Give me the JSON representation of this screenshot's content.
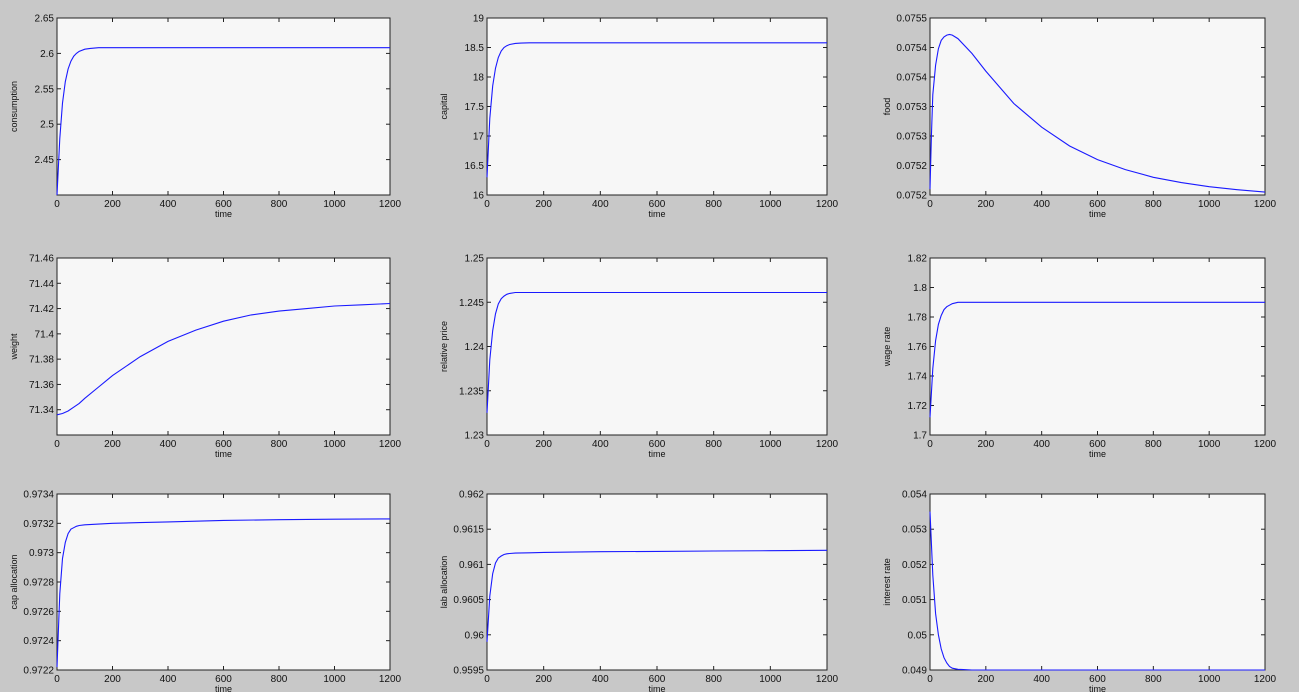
{
  "figure": {
    "background": "#c8c8c8",
    "axes_background": "#f7f7f7",
    "line_color": "#1a1aff"
  },
  "chart_data": [
    {
      "type": "line",
      "xlabel": "time",
      "ylabel": "consumption",
      "xlim": [
        0,
        1200
      ],
      "ylim": [
        2.4,
        2.65
      ],
      "xticks": [
        0,
        200,
        400,
        600,
        800,
        1000,
        1200
      ],
      "xtick_labels": [
        "0",
        "200",
        "400",
        "600",
        "800",
        "1000",
        "1200"
      ],
      "yticks": [
        2.45,
        2.5,
        2.55,
        2.6,
        2.65
      ],
      "ytick_labels": [
        "2.45",
        "2.5",
        "2.55",
        "2.6",
        "2.65"
      ],
      "series": [
        {
          "x": [
            0,
            10,
            20,
            30,
            40,
            50,
            60,
            70,
            80,
            100,
            120,
            150,
            200,
            300,
            600,
            900,
            1200
          ],
          "y": [
            2.4,
            2.48,
            2.53,
            2.56,
            2.578,
            2.589,
            2.596,
            2.6,
            2.603,
            2.606,
            2.607,
            2.608,
            2.608,
            2.608,
            2.608,
            2.608,
            2.608
          ]
        }
      ]
    },
    {
      "type": "line",
      "xlabel": "time",
      "ylabel": "capital",
      "xlim": [
        0,
        1200
      ],
      "ylim": [
        16,
        19
      ],
      "xticks": [
        0,
        200,
        400,
        600,
        800,
        1000,
        1200
      ],
      "xtick_labels": [
        "0",
        "200",
        "400",
        "600",
        "800",
        "1000",
        "1200"
      ],
      "yticks": [
        16,
        16.5,
        17,
        17.5,
        18,
        18.5,
        19
      ],
      "ytick_labels": [
        "16",
        "16.5",
        "17",
        "17.5",
        "18",
        "18.5",
        "19"
      ],
      "series": [
        {
          "x": [
            0,
            10,
            20,
            30,
            40,
            50,
            60,
            70,
            80,
            100,
            120,
            150,
            200,
            300,
            600,
            900,
            1200
          ],
          "y": [
            16.3,
            17.3,
            17.85,
            18.15,
            18.33,
            18.44,
            18.5,
            18.53,
            18.55,
            18.57,
            18.575,
            18.58,
            18.58,
            18.58,
            18.58,
            18.58,
            18.58
          ]
        }
      ]
    },
    {
      "type": "line",
      "xlabel": "time",
      "ylabel": "food",
      "xlim": [
        0,
        1200
      ],
      "ylim": [
        0.0752,
        0.0755
      ],
      "xticks": [
        0,
        200,
        400,
        600,
        800,
        1000,
        1200
      ],
      "xtick_labels": [
        "0",
        "200",
        "400",
        "600",
        "800",
        "1000",
        "1200"
      ],
      "yticks": [
        0.0752,
        0.07525,
        0.0753,
        0.07535,
        0.0754,
        0.07545,
        0.0755
      ],
      "ytick_labels": [
        "0.0752",
        "0.0752",
        "0.0753",
        "0.0753",
        "0.0754",
        "0.0754",
        "0.0755"
      ],
      "series": [
        {
          "x": [
            0,
            5,
            10,
            20,
            30,
            40,
            50,
            60,
            70,
            80,
            100,
            150,
            200,
            300,
            400,
            500,
            600,
            700,
            800,
            900,
            1000,
            1100,
            1200
          ],
          "y": [
            0.07521,
            0.0753,
            0.07537,
            0.07542,
            0.075448,
            0.075462,
            0.075468,
            0.075471,
            0.075472,
            0.075471,
            0.075465,
            0.07544,
            0.07541,
            0.075355,
            0.075315,
            0.075283,
            0.07526,
            0.075243,
            0.07523,
            0.075221,
            0.075214,
            0.075209,
            0.075205
          ]
        }
      ]
    },
    {
      "type": "line",
      "xlabel": "time",
      "ylabel": "weight",
      "xlim": [
        0,
        1200
      ],
      "ylim": [
        71.32,
        71.46
      ],
      "xticks": [
        0,
        200,
        400,
        600,
        800,
        1000,
        1200
      ],
      "xtick_labels": [
        "0",
        "200",
        "400",
        "600",
        "800",
        "1000",
        "1200"
      ],
      "yticks": [
        71.34,
        71.36,
        71.38,
        71.4,
        71.42,
        71.44,
        71.46
      ],
      "ytick_labels": [
        "71.34",
        "71.36",
        "71.38",
        "71.4",
        "71.42",
        "71.44",
        "71.46"
      ],
      "series": [
        {
          "x": [
            0,
            20,
            40,
            60,
            80,
            100,
            150,
            200,
            300,
            400,
            500,
            600,
            700,
            800,
            900,
            1000,
            1100,
            1200
          ],
          "y": [
            71.336,
            71.337,
            71.339,
            71.342,
            71.345,
            71.349,
            71.358,
            71.367,
            71.382,
            71.394,
            71.403,
            71.41,
            71.415,
            71.418,
            71.42,
            71.422,
            71.423,
            71.424
          ]
        }
      ]
    },
    {
      "type": "line",
      "xlabel": "time",
      "ylabel": "relative price",
      "xlim": [
        0,
        1200
      ],
      "ylim": [
        1.23,
        1.25
      ],
      "xticks": [
        0,
        200,
        400,
        600,
        800,
        1000,
        1200
      ],
      "xtick_labels": [
        "0",
        "200",
        "400",
        "600",
        "800",
        "1000",
        "1200"
      ],
      "yticks": [
        1.23,
        1.235,
        1.24,
        1.245,
        1.25
      ],
      "ytick_labels": [
        "1.23",
        "1.235",
        "1.24",
        "1.245",
        "1.25"
      ],
      "series": [
        {
          "x": [
            0,
            10,
            20,
            30,
            40,
            50,
            60,
            70,
            80,
            100,
            120,
            150,
            200,
            300,
            600,
            900,
            1200
          ],
          "y": [
            1.2325,
            1.2385,
            1.2418,
            1.2437,
            1.2448,
            1.2454,
            1.2457,
            1.2459,
            1.246,
            1.2461,
            1.2461,
            1.2461,
            1.2461,
            1.2461,
            1.2461,
            1.2461,
            1.2461
          ]
        }
      ]
    },
    {
      "type": "line",
      "xlabel": "time",
      "ylabel": "wage rate",
      "xlim": [
        0,
        1200
      ],
      "ylim": [
        1.7,
        1.82
      ],
      "xticks": [
        0,
        200,
        400,
        600,
        800,
        1000,
        1200
      ],
      "xtick_labels": [
        "0",
        "200",
        "400",
        "600",
        "800",
        "1000",
        "1200"
      ],
      "yticks": [
        1.7,
        1.72,
        1.74,
        1.76,
        1.78,
        1.8,
        1.82
      ],
      "ytick_labels": [
        "1.7",
        "1.72",
        "1.74",
        "1.76",
        "1.78",
        "1.8",
        "1.82"
      ],
      "series": [
        {
          "x": [
            0,
            10,
            20,
            30,
            40,
            50,
            60,
            70,
            80,
            100,
            120,
            150,
            200,
            300,
            600,
            900,
            1200
          ],
          "y": [
            1.712,
            1.745,
            1.764,
            1.775,
            1.781,
            1.785,
            1.787,
            1.788,
            1.789,
            1.79,
            1.79,
            1.79,
            1.79,
            1.79,
            1.79,
            1.79,
            1.79
          ]
        }
      ]
    },
    {
      "type": "line",
      "xlabel": "time",
      "ylabel": "cap allocation",
      "xlim": [
        0,
        1200
      ],
      "ylim": [
        0.9722,
        0.9734
      ],
      "xticks": [
        0,
        200,
        400,
        600,
        800,
        1000,
        1200
      ],
      "xtick_labels": [
        "0",
        "200",
        "400",
        "600",
        "800",
        "1000",
        "1200"
      ],
      "yticks": [
        0.9722,
        0.9724,
        0.9726,
        0.9728,
        0.973,
        0.9732,
        0.9734
      ],
      "ytick_labels": [
        "0.9722",
        "0.9724",
        "0.9726",
        "0.9728",
        "0.973",
        "0.9732",
        "0.9734"
      ],
      "series": [
        {
          "x": [
            0,
            10,
            20,
            30,
            40,
            50,
            60,
            70,
            80,
            100,
            150,
            200,
            300,
            400,
            600,
            800,
            1000,
            1200
          ],
          "y": [
            0.97222,
            0.97272,
            0.97296,
            0.97307,
            0.97313,
            0.97316,
            0.97317,
            0.97318,
            0.973185,
            0.97319,
            0.973195,
            0.9732,
            0.973205,
            0.97321,
            0.97322,
            0.973225,
            0.973228,
            0.97323
          ]
        }
      ]
    },
    {
      "type": "line",
      "xlabel": "time",
      "ylabel": "lab allocation",
      "xlim": [
        0,
        1200
      ],
      "ylim": [
        0.9595,
        0.962
      ],
      "xticks": [
        0,
        200,
        400,
        600,
        800,
        1000,
        1200
      ],
      "xtick_labels": [
        "0",
        "200",
        "400",
        "600",
        "800",
        "1000",
        "1200"
      ],
      "yticks": [
        0.9595,
        0.96,
        0.9605,
        0.961,
        0.9615,
        0.962
      ],
      "ytick_labels": [
        "0.9595",
        "0.96",
        "0.9605",
        "0.961",
        "0.9615",
        "0.962"
      ],
      "series": [
        {
          "x": [
            0,
            10,
            20,
            30,
            40,
            50,
            60,
            70,
            80,
            100,
            150,
            200,
            300,
            400,
            600,
            800,
            1000,
            1200
          ],
          "y": [
            0.9599,
            0.96055,
            0.96087,
            0.96102,
            0.96109,
            0.96112,
            0.96114,
            0.96115,
            0.961155,
            0.96116,
            0.961165,
            0.96117,
            0.961175,
            0.96118,
            0.961185,
            0.96119,
            0.961195,
            0.9612
          ]
        }
      ]
    },
    {
      "type": "line",
      "xlabel": "time",
      "ylabel": "interest rate",
      "xlim": [
        0,
        1200
      ],
      "ylim": [
        0.049,
        0.054
      ],
      "xticks": [
        0,
        200,
        400,
        600,
        800,
        1000,
        1200
      ],
      "xtick_labels": [
        "0",
        "200",
        "400",
        "600",
        "800",
        "1000",
        "1200"
      ],
      "yticks": [
        0.049,
        0.05,
        0.051,
        0.052,
        0.053,
        0.054
      ],
      "ytick_labels": [
        "0.049",
        "0.05",
        "0.051",
        "0.052",
        "0.053",
        "0.054"
      ],
      "series": [
        {
          "x": [
            0,
            10,
            20,
            30,
            40,
            50,
            60,
            70,
            80,
            100,
            120,
            150,
            200,
            300,
            600,
            900,
            1200
          ],
          "y": [
            0.0535,
            0.0517,
            0.0506,
            0.05,
            0.0496,
            0.04935,
            0.0492,
            0.0491,
            0.04905,
            0.04902,
            0.04901,
            0.049,
            0.049,
            0.049,
            0.049,
            0.049,
            0.049
          ]
        }
      ]
    }
  ]
}
